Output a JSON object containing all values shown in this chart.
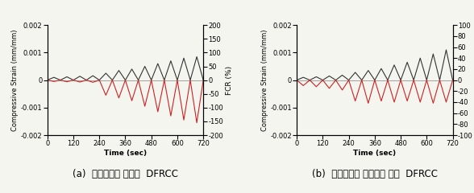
{
  "subplot_a": {
    "title": "(a)  방수캘리를 진행한  DFRCC",
    "ylim_left": [
      -0.002,
      0.002
    ],
    "ylim_right": [
      -200,
      200
    ],
    "yticks_left": [
      -0.002,
      -0.001,
      0,
      0.001,
      0.002
    ],
    "yticks_right": [
      -200,
      -150,
      -100,
      -50,
      0,
      50,
      100,
      150,
      200
    ],
    "xticks": [
      0,
      120,
      240,
      360,
      480,
      600,
      720
    ],
    "xlabel": "Time (sec)",
    "ylabel_left": "Compressive Strain (mm/mm)",
    "ylabel_right": "FCR (%)",
    "strain_peaks": [
      0.0001,
      0.00012,
      0.00014,
      0.00016,
      0.00025,
      0.00035,
      0.0004,
      0.0005,
      0.0006,
      0.0007,
      0.0008,
      0.00085
    ],
    "fcr_peaks": [
      -5,
      -6,
      -7,
      -8,
      -55,
      -65,
      -75,
      -95,
      -115,
      -130,
      -145,
      -155
    ]
  },
  "subplot_b": {
    "title": "(b)  방수캘리를 진행하지 않은  DFRCC",
    "ylim_left": [
      -0.002,
      0.002
    ],
    "ylim_right": [
      -100,
      100
    ],
    "yticks_left": [
      -0.002,
      -0.001,
      0,
      0.001,
      0.002
    ],
    "yticks_right": [
      -100,
      -80,
      -60,
      -40,
      -20,
      0,
      20,
      40,
      60,
      80,
      100
    ],
    "xticks": [
      0,
      120,
      240,
      360,
      480,
      600,
      720
    ],
    "xlabel": "Time (sec)",
    "ylabel_left": "Compressive Strain (mm/mm)",
    "ylabel_right": "FCR (%)",
    "strain_peaks": [
      0.0001,
      0.00012,
      0.00015,
      0.00018,
      0.00028,
      0.00035,
      0.00042,
      0.00055,
      0.00065,
      0.0008,
      0.00095,
      0.0011
    ],
    "fcr_peaks": [
      -10,
      -12,
      -15,
      -18,
      -38,
      -42,
      -38,
      -40,
      -38,
      -40,
      -42,
      -40
    ]
  },
  "black_color": "#333333",
  "red_color": "#cc2222",
  "background_color": "#f5f5f0",
  "linewidth": 0.8,
  "title_fontsize": 8.5,
  "label_fontsize": 6.5,
  "tick_fontsize": 6
}
